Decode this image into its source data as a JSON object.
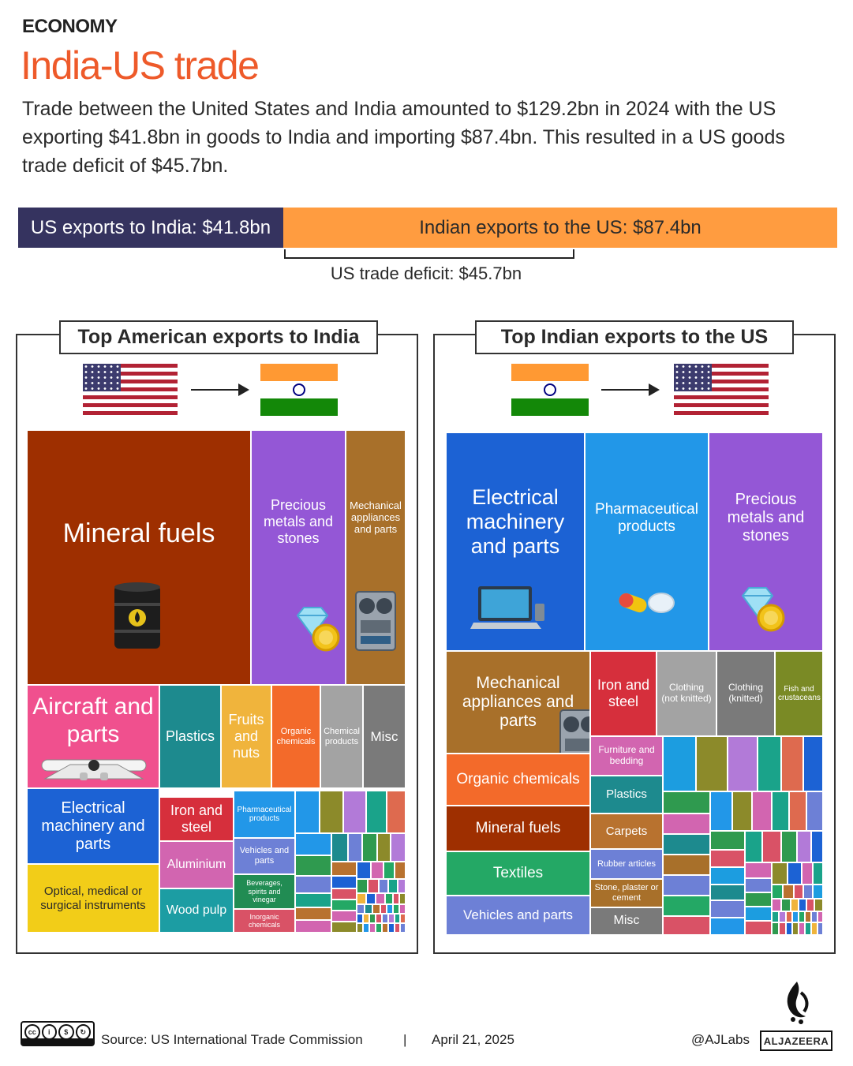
{
  "header": {
    "section": "ECONOMY",
    "title": "India-US trade",
    "intro": "Trade between the United States and India amounted to $129.2bn in 2024 with the US exporting $41.8bn in goods to India and importing $87.4bn. This resulted in a US goods trade deficit of $45.7bn."
  },
  "trade_bar": {
    "us_label": "US exports to India: $41.8bn",
    "india_label": "Indian exports to the US: $87.4bn",
    "deficit_label": "US trade deficit: $45.7bn",
    "colors": {
      "us": "#35335f",
      "india": "#ff9c40"
    }
  },
  "panels": {
    "us": {
      "title": "Top American exports to India"
    },
    "india": {
      "title": "Top Indian exports to the US"
    }
  },
  "chart_data": [
    {
      "type": "bar",
      "categories": [
        "US exports to India",
        "Indian exports to the US"
      ],
      "values": [
        41.8,
        87.4
      ],
      "annotations": [
        "US trade deficit: $45.7bn"
      ]
    },
    {
      "type": "treemap",
      "title": "Top American exports to India",
      "labeled_cells": [
        {
          "label": "Mineral fuels",
          "color": "#9e2f00",
          "icon": "oil-barrel-icon"
        },
        {
          "label": "Precious metals and stones",
          "color": "#9457d6",
          "icon": "diamond-coin-icon"
        },
        {
          "label": "Mechanical appliances and parts",
          "color": "#a8702a",
          "icon": "machine-icon"
        },
        {
          "label": "Aircraft and parts",
          "color": "#f0508e",
          "icon": "airplane-icon"
        },
        {
          "label": "Plastics",
          "color": "#1d8a8e"
        },
        {
          "label": "Fruits and nuts",
          "color": "#f0b43c"
        },
        {
          "label": "Organic chemicals",
          "color": "#f36a2a"
        },
        {
          "label": "Chemical products",
          "color": "#a3a3a3"
        },
        {
          "label": "Misc",
          "color": "#7a7a7a"
        },
        {
          "label": "Electrical machinery and parts",
          "color": "#1c62d4"
        },
        {
          "label": "Optical, medical or surgical instruments",
          "color": "#f2cd18"
        },
        {
          "label": "Iron and steel",
          "color": "#d62f3c"
        },
        {
          "label": "Aluminium",
          "color": "#d265b0"
        },
        {
          "label": "Wood pulp",
          "color": "#1c9da3"
        },
        {
          "label": "Pharmaceutical products",
          "color": "#2297e8"
        },
        {
          "label": "Vehicles and parts",
          "color": "#6d80d6"
        },
        {
          "label": "Beverages, spirits and vinegar",
          "color": "#218c53"
        },
        {
          "label": "Inorganic chemicals",
          "color": "#d95266"
        }
      ]
    },
    {
      "type": "treemap",
      "title": "Top Indian exports to the US",
      "labeled_cells": [
        {
          "label": "Electrical machinery and parts",
          "color": "#1c62d4",
          "icon": "laptop-icon"
        },
        {
          "label": "Pharmaceutical products",
          "color": "#2297e8",
          "icon": "pills-icon"
        },
        {
          "label": "Precious metals and stones",
          "color": "#9457d6",
          "icon": "diamond-coin-icon"
        },
        {
          "label": "Mechanical appliances and parts",
          "color": "#a8702a",
          "icon": "machine-icon"
        },
        {
          "label": "Iron and steel",
          "color": "#d62f3c"
        },
        {
          "label": "Clothing (not knitted)",
          "color": "#a3a3a3"
        },
        {
          "label": "Clothing (knitted)",
          "color": "#7a7a7a"
        },
        {
          "label": "Fish and crustaceans",
          "color": "#7a8a25"
        },
        {
          "label": "Organic chemicals",
          "color": "#f36a2a"
        },
        {
          "label": "Mineral fuels",
          "color": "#9e2f00"
        },
        {
          "label": "Textiles",
          "color": "#24a865"
        },
        {
          "label": "Vehicles and parts",
          "color": "#6d80d6"
        },
        {
          "label": "Furniture and bedding",
          "color": "#d265b0"
        },
        {
          "label": "Plastics",
          "color": "#1d8a8e"
        },
        {
          "label": "Carpets",
          "color": "#b8722f"
        },
        {
          "label": "Rubber articles",
          "color": "#6d80d6"
        },
        {
          "label": "Stone, plaster or cement",
          "color": "#a8702a"
        },
        {
          "label": "Misc",
          "color": "#7a7a7a"
        }
      ]
    }
  ],
  "footer": {
    "license": "BY NC SA",
    "source": "Source:  US International Trade Commission",
    "separator": "|",
    "date": "April 21, 2025",
    "handle": "@AJLabs",
    "brand": "ALJAZEERA"
  }
}
